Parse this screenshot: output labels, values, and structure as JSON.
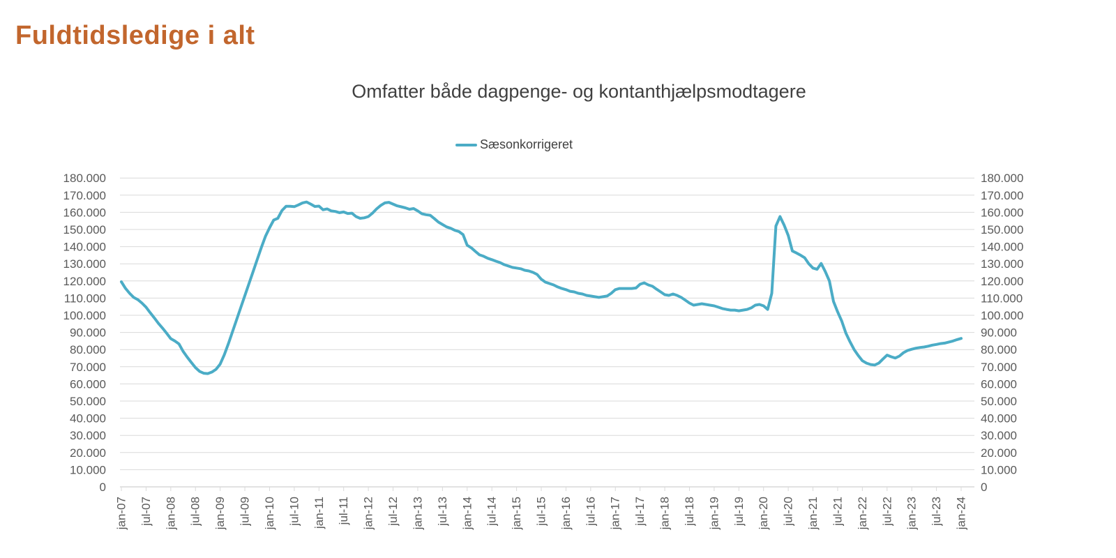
{
  "page": {
    "background": "#FFFFFF"
  },
  "header": {
    "title": "Fuldtidsledige i alt",
    "title_color": "#C2662D"
  },
  "chart": {
    "subtitle": "Omfatter både dagpenge- og kontanthjælpsmodtagere",
    "legend": {
      "label": "Sæsonkorrigeret",
      "line_color": "#4BACC6"
    }
  },
  "chart_data": {
    "type": "line",
    "title": "Omfatter både dagpenge- og kontanthjælpsmodtagere",
    "legend_position": "top-center",
    "grid": "horizontal",
    "number_format": "da-DK dot thousands separator",
    "grid_color": "#D9D9D9",
    "axis_label_color": "#595959",
    "ylim": [
      0,
      180000
    ],
    "x_start": "jan-07",
    "x_end": "jan-24",
    "x_tick_interval_months": 6,
    "x_tick_labels": [
      "jan-07",
      "jul-07",
      "jan-08",
      "jul-08",
      "jan-09",
      "jul-09",
      "jan-10",
      "jul-10",
      "jan-11",
      "jul-11",
      "jan-12",
      "jul-12",
      "jan-13",
      "jul-13",
      "jan-14",
      "jul-14",
      "jan-15",
      "jul-15",
      "jan-16",
      "jul-16",
      "jan-17",
      "jul-17",
      "jan-18",
      "jul-18",
      "jan-19",
      "jul-19",
      "jan-20",
      "jul-20",
      "jan-21",
      "jul-21",
      "jan-22",
      "jul-22",
      "jan-23",
      "jul-23",
      "jan-24"
    ],
    "y_ticks": [
      {
        "value": 0,
        "label": "0"
      },
      {
        "value": 10000,
        "label": "10.000"
      },
      {
        "value": 20000,
        "label": "20.000"
      },
      {
        "value": 30000,
        "label": "30.000"
      },
      {
        "value": 40000,
        "label": "40.000"
      },
      {
        "value": 50000,
        "label": "50.000"
      },
      {
        "value": 60000,
        "label": "60.000"
      },
      {
        "value": 70000,
        "label": "70.000"
      },
      {
        "value": 80000,
        "label": "80.000"
      },
      {
        "value": 90000,
        "label": "90.000"
      },
      {
        "value": 100000,
        "label": "100.000"
      },
      {
        "value": 110000,
        "label": "110.000"
      },
      {
        "value": 120000,
        "label": "120.000"
      },
      {
        "value": 130000,
        "label": "130.000"
      },
      {
        "value": 140000,
        "label": "140.000"
      },
      {
        "value": 150000,
        "label": "150.000"
      },
      {
        "value": 160000,
        "label": "160.000"
      },
      {
        "value": 170000,
        "label": "170.000"
      },
      {
        "value": 180000,
        "label": "180.000"
      }
    ],
    "series": [
      {
        "name": "Sæsonkorrigeret",
        "color": "#4BACC6",
        "start_month": "2007-01",
        "end_month": "2024-01",
        "values": [
          119500,
          115700,
          112800,
          110400,
          109100,
          107100,
          104700,
          101500,
          98500,
          95300,
          92500,
          89500,
          86400,
          85000,
          83300,
          79000,
          75600,
          72500,
          69500,
          67300,
          66200,
          66000,
          66900,
          68500,
          71500,
          77000,
          83500,
          90500,
          97500,
          104500,
          111500,
          118500,
          125500,
          132500,
          139500,
          146000,
          151000,
          155500,
          156500,
          161000,
          163500,
          163500,
          163300,
          164300,
          165500,
          166000,
          164800,
          163400,
          163600,
          161500,
          162000,
          160800,
          160500,
          159800,
          160200,
          159300,
          159500,
          157500,
          156500,
          156800,
          157500,
          159500,
          162000,
          164000,
          165500,
          165800,
          164800,
          163800,
          163200,
          162600,
          161800,
          162200,
          160800,
          159200,
          158600,
          158300,
          156400,
          154300,
          152900,
          151500,
          150700,
          149500,
          148800,
          147000,
          140800,
          139300,
          137200,
          135200,
          134400,
          133200,
          132400,
          131500,
          130700,
          129500,
          128700,
          127900,
          127500,
          127100,
          126200,
          125800,
          125000,
          123800,
          121000,
          119300,
          118500,
          117700,
          116500,
          115600,
          114900,
          114000,
          113600,
          112800,
          112400,
          111600,
          111200,
          110800,
          110400,
          110800,
          111200,
          112800,
          114900,
          115600,
          115600,
          115600,
          115600,
          115900,
          118100,
          118900,
          117700,
          116900,
          115200,
          113600,
          112000,
          111600,
          112400,
          111600,
          110400,
          108800,
          107100,
          105900,
          106300,
          106700,
          106300,
          105900,
          105500,
          104700,
          103900,
          103400,
          103000,
          103000,
          102600,
          103000,
          103400,
          104300,
          105900,
          106300,
          105500,
          103400,
          112800,
          152000,
          157500,
          152500,
          146500,
          137500,
          136300,
          135000,
          133500,
          130000,
          127500,
          126800,
          130200,
          125500,
          120000,
          108000,
          102000,
          96500,
          89500,
          84500,
          80000,
          76500,
          73500,
          72100,
          71300,
          71000,
          72100,
          74500,
          76800,
          75800,
          75100,
          76200,
          78200,
          79500,
          80200,
          80800,
          81200,
          81500,
          82000,
          82600,
          83000,
          83500,
          83800,
          84400,
          85000,
          85800,
          86500
        ]
      }
    ]
  }
}
